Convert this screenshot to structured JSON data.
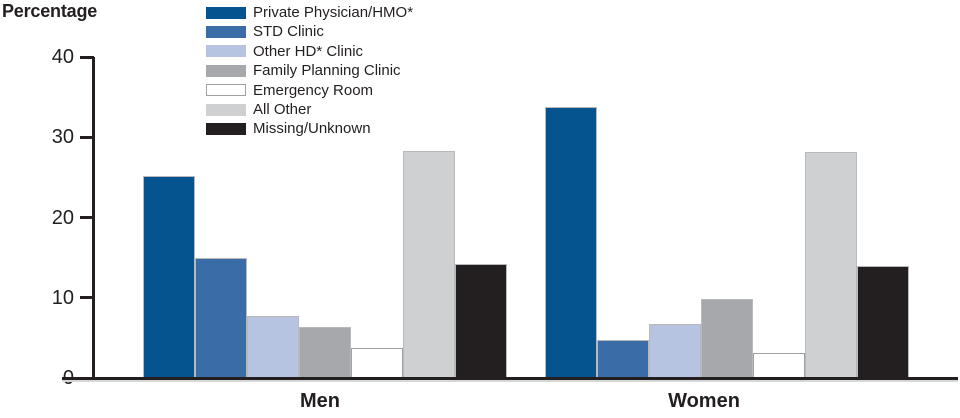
{
  "chart_data": {
    "type": "bar",
    "title": "",
    "ylabel": "Percentage",
    "xlabel": "",
    "categories": [
      "Men",
      "Women"
    ],
    "series": [
      {
        "name": "Private Physician/HMO*",
        "color": "#05538f",
        "values": [
          25.2,
          33.8
        ]
      },
      {
        "name": "STD Clinic",
        "color": "#3a6da7",
        "values": [
          14.9,
          4.7
        ]
      },
      {
        "name": "Other HD* Clinic",
        "color": "#b7c4e1",
        "values": [
          7.7,
          6.7
        ]
      },
      {
        "name": "Family Planning Clinic",
        "color": "#a6a8ab",
        "values": [
          6.4,
          9.8
        ]
      },
      {
        "name": "Emergency Room",
        "color": "#ffffff",
        "values": [
          3.7,
          3.1
        ]
      },
      {
        "name": "All Other",
        "color": "#cfd0d2",
        "values": [
          28.3,
          28.2
        ]
      },
      {
        "name": "Missing/Unknown",
        "color": "#231f20",
        "values": [
          14.2,
          13.9
        ]
      }
    ],
    "ylim": [
      0,
      40
    ],
    "yticks": [
      0,
      10,
      20,
      30,
      40
    ],
    "grid": false,
    "legend_position": "top-inside"
  },
  "colors": {
    "axis": "#231f20",
    "text": "#231f20",
    "bar_outline": "#b7b9bb",
    "white_bar_outline": "#9fa1a4"
  }
}
